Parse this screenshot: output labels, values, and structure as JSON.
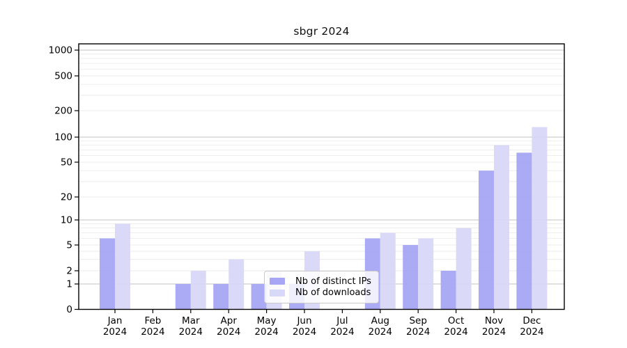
{
  "chart_data": {
    "type": "bar",
    "title": "sbgr 2024",
    "categories": [
      "Jan 2024",
      "Feb 2024",
      "Mar 2024",
      "Apr 2024",
      "May 2024",
      "Jun 2024",
      "Jul 2024",
      "Aug 2024",
      "Sep 2024",
      "Oct 2024",
      "Nov 2024",
      "Dec 2024"
    ],
    "month_labels": [
      "Jan",
      "Feb",
      "Mar",
      "Apr",
      "May",
      "Jun",
      "Jul",
      "Aug",
      "Sep",
      "Oct",
      "Nov",
      "Dec"
    ],
    "year_label": "2024",
    "series": [
      {
        "name": "Nb of distinct IPs",
        "color": "#a6a6f4",
        "values": [
          6,
          0,
          1,
          1,
          1,
          1,
          0,
          6,
          5,
          2,
          40,
          65
        ]
      },
      {
        "name": "Nb of downloads",
        "color": "#d8d8f8",
        "values": [
          9,
          0,
          2,
          3,
          2,
          4,
          0,
          7,
          6,
          8,
          80,
          130
        ]
      }
    ],
    "yscale": "log above 1, linear 0-1",
    "ytick_values": [
      0,
      1,
      2,
      5,
      10,
      20,
      50,
      100,
      200,
      500,
      1000
    ],
    "ytick_labels": [
      "0",
      "1",
      "2",
      "5",
      "10",
      "20",
      "50",
      "100",
      "200",
      "500",
      "1000"
    ],
    "ylim": [
      0,
      1200
    ],
    "grid": true,
    "grid_major_at": [
      1,
      10,
      100,
      1000
    ],
    "legend_position": "inside-bottom-center",
    "colors": {
      "bar_distinct_ips": "#a6a6f4",
      "bar_downloads": "#d8d8f8",
      "grid_major": "#c2c2c2",
      "grid_minor": "#ebebeb",
      "axis": "#000000"
    }
  }
}
